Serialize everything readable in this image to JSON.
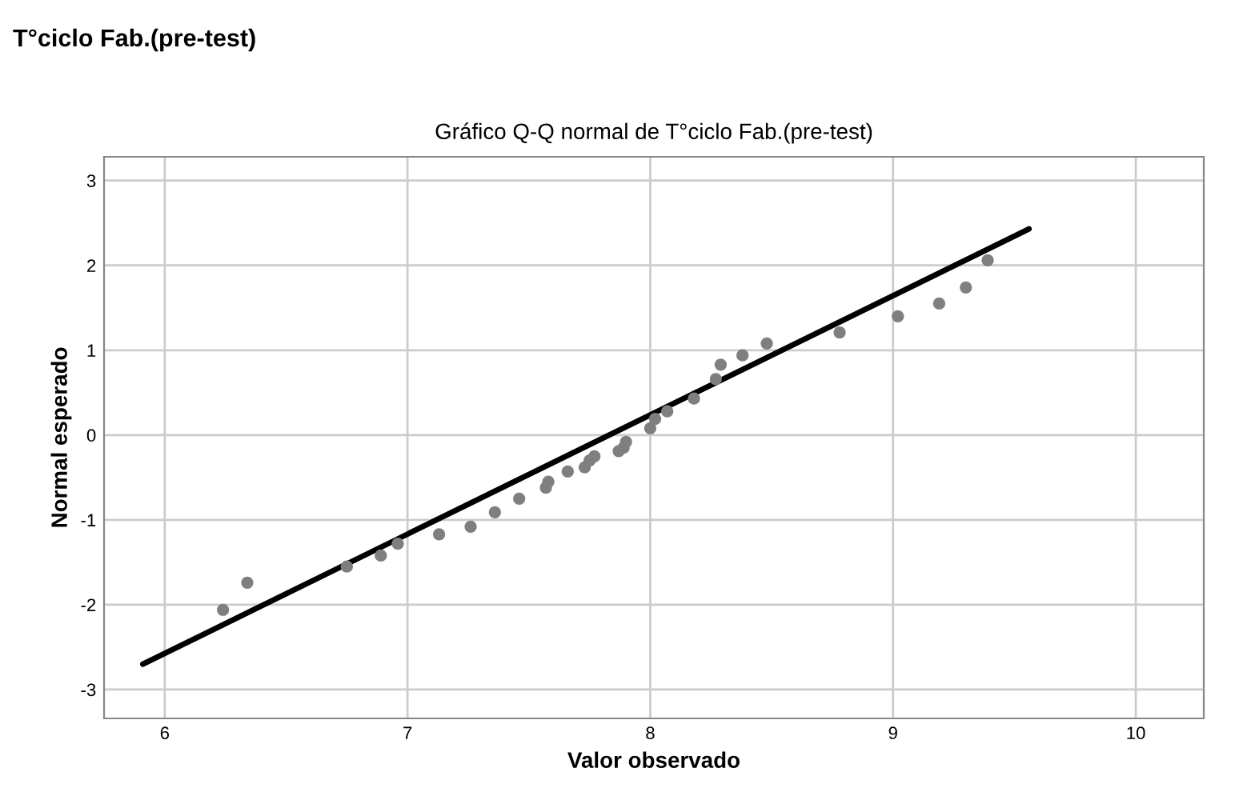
{
  "chart_data": {
    "type": "scatter",
    "title": "T°ciclo Fab.(pre-test)",
    "subtitle": "Gráfico Q-Q normal de T°ciclo Fab.(pre-test)",
    "xlabel": "Valor observado",
    "ylabel": "Normal esperado",
    "xlim": [
      5.75,
      10.28
    ],
    "ylim": [
      -3.34,
      3.28
    ],
    "xticks": [
      6,
      7,
      8,
      9,
      10
    ],
    "yticks": [
      -3,
      -2,
      -1,
      0,
      1,
      2,
      3
    ],
    "grid": true,
    "series": [
      {
        "color": "#7f7f7f",
        "marker": "circle",
        "x": [
          6.24,
          6.34,
          6.75,
          6.89,
          6.96,
          7.13,
          7.26,
          7.36,
          7.46,
          7.57,
          7.58,
          7.66,
          7.73,
          7.75,
          7.77,
          7.87,
          7.89,
          7.9,
          8.0,
          8.02,
          8.07,
          8.18,
          8.27,
          8.29,
          8.38,
          8.48,
          8.78,
          9.02,
          9.19,
          9.3,
          9.39
        ],
        "values": [
          -2.06,
          -1.74,
          -1.55,
          -1.42,
          -1.28,
          -1.17,
          -1.08,
          -0.91,
          -0.75,
          -0.62,
          -0.55,
          -0.43,
          -0.38,
          -0.3,
          -0.25,
          -0.19,
          -0.15,
          -0.08,
          0.08,
          0.19,
          0.28,
          0.43,
          0.66,
          0.83,
          0.94,
          1.08,
          1.21,
          1.4,
          1.55,
          1.74,
          2.06
        ]
      },
      {
        "type": "line",
        "marker": "none",
        "color": "#000000",
        "x": [
          5.91,
          9.56
        ],
        "values": [
          -2.7,
          2.43
        ]
      }
    ]
  }
}
